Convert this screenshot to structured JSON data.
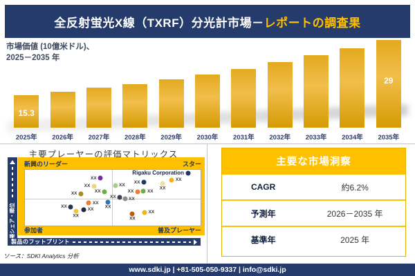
{
  "colors": {
    "navy": "#253B6C",
    "gold": "#FFC000",
    "bar_gold": "#E2A71C"
  },
  "header": {
    "title_main": "全反射蛍光X線（TXRF）分光計市場－",
    "title_accent": "レポートの調査果"
  },
  "bar_chart": {
    "label_line1": "市場価値 (10億米ドル)、",
    "label_line2": "2025－2035 年"
  },
  "chart_data": [
    {
      "type": "bar",
      "title": "市場価値 (10億米ドル)、2025－2035 年",
      "ylabel": "市場価値 (10億米ドル)",
      "categories": [
        "2025年",
        "2026年",
        "2027年",
        "2028年",
        "2029年",
        "2030年",
        "2031年",
        "2032年",
        "2033年",
        "2034年",
        "2035年"
      ],
      "values": [
        15.3,
        16.2,
        17.1,
        18.0,
        19.2,
        20.4,
        21.8,
        23.5,
        25.2,
        27.0,
        29
      ],
      "labeled_values": {
        "2025年": "15.3",
        "2035年": "29"
      },
      "data_labels": [
        {
          "index": 0,
          "text": "15.3",
          "position": "inside-bottom"
        },
        {
          "index": 10,
          "text": "29",
          "position": "inside-upper"
        }
      ],
      "bar_color": "#E2A71C",
      "grid": false,
      "legend": false
    },
    {
      "type": "scatter",
      "title": "主要プレーヤーの評価マトリックス",
      "xlabel": "製品のフットプリント",
      "ylabel": "市場シェア・順位",
      "quadrants": {
        "top_left": "新興のリーダー",
        "top_right": "スター",
        "bottom_left": "参加者",
        "bottom_right": "普及プレーヤー"
      },
      "points": [
        {
          "x_pct": 43.0,
          "y_pct": 15.3,
          "color": "#7030A0",
          "label": "XX",
          "label_pos": "left"
        },
        {
          "x_pct": 39.3,
          "y_pct": 29.1,
          "color": "#EDD67E",
          "label": "XX",
          "label_pos": "left"
        },
        {
          "x_pct": 31.9,
          "y_pct": 43.1,
          "color": "#A98B21",
          "label": "XX",
          "label_pos": "left"
        },
        {
          "x_pct": 45.3,
          "y_pct": 39.1,
          "color": "#6FAD47",
          "label": "XX",
          "label_pos": "left"
        },
        {
          "x_pct": 51.4,
          "y_pct": 27.8,
          "color": "#A5CE8D",
          "label": "XX",
          "label_pos": "right"
        },
        {
          "x_pct": 67.7,
          "y_pct": 22.5,
          "color": "#1F3864",
          "label": "XX",
          "label_pos": "left"
        },
        {
          "x_pct": 64.1,
          "y_pct": 39.5,
          "color": "#ED7D31",
          "label": "XX",
          "label_pos": "left"
        },
        {
          "x_pct": 67.5,
          "y_pct": 38.7,
          "color": "#70AD47",
          "label": "XX",
          "label_pos": "right"
        },
        {
          "x_pct": 78.4,
          "y_pct": 24.2,
          "color": "#F0DFA8",
          "label": "XX",
          "label_pos": "below"
        },
        {
          "x_pct": 83.6,
          "y_pct": 18.2,
          "color": "#F2B312",
          "label": "XX",
          "label_pos": "right"
        },
        {
          "x_pct": 93.1,
          "y_pct": 6.0,
          "color": "#1F3864",
          "label": "Rigaku Corporation",
          "label_pos": "left",
          "name": "Rigaku Corporation"
        },
        {
          "x_pct": 36.4,
          "y_pct": 59.3,
          "color": "#E97E30",
          "label": "XX",
          "label_pos": "right"
        },
        {
          "x_pct": 47.3,
          "y_pct": 58.5,
          "color": "#2E75B6",
          "label": "XX",
          "label_pos": "below"
        },
        {
          "x_pct": 26.1,
          "y_pct": 66.6,
          "color": "#273350",
          "label": "XX",
          "label_pos": "left"
        },
        {
          "x_pct": 33.6,
          "y_pct": 71.4,
          "color": "#26283A",
          "label": "XX",
          "label_pos": "right"
        },
        {
          "x_pct": 29.0,
          "y_pct": 73.8,
          "color": "#F0C53A",
          "label": "XX",
          "label_pos": "below"
        },
        {
          "x_pct": 54.0,
          "y_pct": 48.8,
          "color": "#3F4150",
          "label": "XX",
          "label_pos": "left"
        },
        {
          "x_pct": 56.9,
          "y_pct": 52.1,
          "color": "#8C8C8C",
          "label": "XX",
          "label_pos": "right"
        },
        {
          "x_pct": 61.2,
          "y_pct": 79.4,
          "color": "#BE5A12",
          "label": "XX",
          "label_pos": "below"
        },
        {
          "x_pct": 68.1,
          "y_pct": 76.3,
          "color": "#EEB60F",
          "label": "XX",
          "label_pos": "right"
        }
      ],
      "legend": false
    }
  ],
  "matrix": {
    "title": "主要プレーヤーの評価マトリックス",
    "quadrants": {
      "top_left": "新興のリーダー",
      "top_right": "スター",
      "bottom_left": "参加者",
      "bottom_right": "普及プレーヤー"
    },
    "y_axis": "市場シェア・順位",
    "x_axis": "製品のフットプリント",
    "point_label": "XX",
    "highlighted_company": "Rigaku Corporation"
  },
  "insights_table": {
    "title": "主要な市場洞察",
    "rows": [
      {
        "label": "CAGR",
        "value": "約6.2%"
      },
      {
        "label": "予測年",
        "value": "2026－2035 年"
      },
      {
        "label": "基準年",
        "value": "2025 年"
      }
    ]
  },
  "source": "ソース：SDKI Analytics 分析",
  "footer": "www.sdki.jp | +81-505-050-9337 | info@sdki.jp"
}
